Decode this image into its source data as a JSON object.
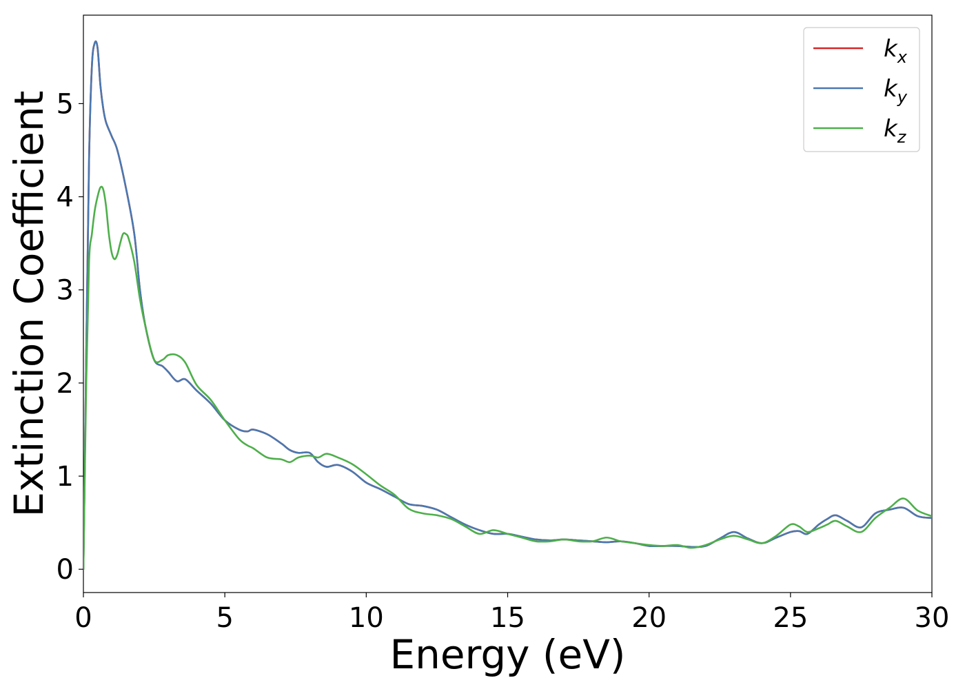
{
  "chart_data": {
    "type": "line",
    "title": "",
    "xlabel": "Energy (eV)",
    "ylabel": "Extinction Coefficient",
    "xlim": [
      0,
      30
    ],
    "ylim": [
      -0.25,
      5.95
    ],
    "xticks": [
      0,
      5,
      10,
      15,
      20,
      25,
      30
    ],
    "yticks": [
      0,
      1,
      2,
      3,
      4,
      5
    ],
    "xtick_labels": [
      "0",
      "5",
      "10",
      "15",
      "20",
      "25",
      "30"
    ],
    "ytick_labels": [
      "0",
      "1",
      "2",
      "3",
      "4",
      "5"
    ],
    "grid": false,
    "legend_position": "top-right",
    "series": [
      {
        "name": "k_x",
        "label_main": "k",
        "label_sub": "x",
        "color": "#d62728",
        "x": [
          0,
          0.1,
          0.2,
          0.3,
          0.4,
          0.5,
          0.6,
          0.7,
          0.8,
          1.0,
          1.2,
          1.5,
          1.8,
          2.0,
          2.2,
          2.5,
          2.8,
          3.0,
          3.3,
          3.6,
          4.0,
          4.5,
          5.0,
          5.5,
          5.8,
          6.0,
          6.5,
          7.0,
          7.3,
          7.6,
          8.0,
          8.3,
          8.6,
          9.0,
          9.5,
          10.0,
          10.5,
          11.0,
          11.5,
          12.0,
          12.5,
          13.0,
          13.5,
          14.0,
          14.5,
          15.0,
          15.5,
          16.0,
          16.5,
          17.0,
          17.5,
          18.0,
          18.5,
          19.0,
          19.5,
          20.0,
          20.5,
          21.0,
          21.5,
          22.0,
          22.5,
          23.0,
          23.5,
          24.0,
          24.5,
          25.0,
          25.3,
          25.6,
          26.0,
          26.3,
          26.6,
          27.0,
          27.5,
          28.0,
          28.5,
          29.0,
          29.5,
          30.0
        ],
        "y": [
          0.0,
          2.3,
          4.4,
          5.4,
          5.65,
          5.6,
          5.2,
          4.95,
          4.8,
          4.65,
          4.5,
          4.1,
          3.6,
          3.0,
          2.6,
          2.25,
          2.18,
          2.12,
          2.02,
          2.04,
          1.92,
          1.78,
          1.6,
          1.5,
          1.48,
          1.5,
          1.45,
          1.35,
          1.28,
          1.25,
          1.25,
          1.15,
          1.1,
          1.12,
          1.05,
          0.93,
          0.86,
          0.78,
          0.7,
          0.68,
          0.64,
          0.56,
          0.48,
          0.42,
          0.38,
          0.38,
          0.35,
          0.32,
          0.31,
          0.32,
          0.31,
          0.3,
          0.29,
          0.3,
          0.28,
          0.25,
          0.25,
          0.25,
          0.24,
          0.25,
          0.33,
          0.4,
          0.33,
          0.28,
          0.34,
          0.4,
          0.41,
          0.38,
          0.48,
          0.54,
          0.58,
          0.52,
          0.45,
          0.6,
          0.64,
          0.66,
          0.57,
          0.55
        ]
      },
      {
        "name": "k_y",
        "label_main": "k",
        "label_sub": "y",
        "color": "#4a78b0",
        "x": [
          0,
          0.1,
          0.2,
          0.3,
          0.4,
          0.5,
          0.6,
          0.7,
          0.8,
          1.0,
          1.2,
          1.5,
          1.8,
          2.0,
          2.2,
          2.5,
          2.8,
          3.0,
          3.3,
          3.6,
          4.0,
          4.5,
          5.0,
          5.5,
          5.8,
          6.0,
          6.5,
          7.0,
          7.3,
          7.6,
          8.0,
          8.3,
          8.6,
          9.0,
          9.5,
          10.0,
          10.5,
          11.0,
          11.5,
          12.0,
          12.5,
          13.0,
          13.5,
          14.0,
          14.5,
          15.0,
          15.5,
          16.0,
          16.5,
          17.0,
          17.5,
          18.0,
          18.5,
          19.0,
          19.5,
          20.0,
          20.5,
          21.0,
          21.5,
          22.0,
          22.5,
          23.0,
          23.5,
          24.0,
          24.5,
          25.0,
          25.3,
          25.6,
          26.0,
          26.3,
          26.6,
          27.0,
          27.5,
          28.0,
          28.5,
          29.0,
          29.5,
          30.0
        ],
        "y": [
          0.0,
          2.3,
          4.4,
          5.4,
          5.65,
          5.6,
          5.2,
          4.95,
          4.8,
          4.65,
          4.5,
          4.1,
          3.6,
          3.0,
          2.6,
          2.25,
          2.18,
          2.12,
          2.02,
          2.04,
          1.92,
          1.78,
          1.6,
          1.5,
          1.48,
          1.5,
          1.45,
          1.35,
          1.28,
          1.25,
          1.25,
          1.15,
          1.1,
          1.12,
          1.05,
          0.93,
          0.86,
          0.78,
          0.7,
          0.68,
          0.64,
          0.56,
          0.48,
          0.42,
          0.38,
          0.38,
          0.35,
          0.32,
          0.31,
          0.32,
          0.31,
          0.3,
          0.29,
          0.3,
          0.28,
          0.25,
          0.25,
          0.25,
          0.24,
          0.25,
          0.33,
          0.4,
          0.33,
          0.28,
          0.34,
          0.4,
          0.41,
          0.38,
          0.48,
          0.54,
          0.58,
          0.52,
          0.45,
          0.6,
          0.64,
          0.66,
          0.57,
          0.55
        ]
      },
      {
        "name": "k_z",
        "label_main": "k",
        "label_sub": "z",
        "color": "#4daf4a",
        "x": [
          0,
          0.1,
          0.2,
          0.3,
          0.4,
          0.5,
          0.6,
          0.7,
          0.8,
          0.9,
          1.0,
          1.1,
          1.2,
          1.3,
          1.4,
          1.5,
          1.6,
          1.8,
          2.0,
          2.2,
          2.5,
          2.8,
          3.0,
          3.3,
          3.6,
          4.0,
          4.5,
          5.0,
          5.5,
          5.8,
          6.0,
          6.5,
          7.0,
          7.3,
          7.6,
          8.0,
          8.3,
          8.6,
          9.0,
          9.5,
          10.0,
          10.5,
          11.0,
          11.5,
          12.0,
          12.5,
          13.0,
          13.5,
          14.0,
          14.5,
          15.0,
          15.5,
          16.0,
          16.5,
          17.0,
          17.5,
          18.0,
          18.5,
          19.0,
          19.5,
          20.0,
          20.5,
          21.0,
          21.5,
          22.0,
          22.5,
          23.0,
          23.5,
          24.0,
          24.5,
          25.0,
          25.3,
          25.6,
          26.0,
          26.3,
          26.6,
          27.0,
          27.5,
          28.0,
          28.5,
          29.0,
          29.5,
          30.0
        ],
        "y": [
          0.0,
          2.0,
          3.3,
          3.6,
          3.85,
          4.0,
          4.1,
          4.08,
          3.9,
          3.6,
          3.4,
          3.33,
          3.38,
          3.5,
          3.6,
          3.6,
          3.55,
          3.3,
          2.9,
          2.6,
          2.25,
          2.25,
          2.3,
          2.3,
          2.22,
          1.98,
          1.82,
          1.6,
          1.4,
          1.33,
          1.3,
          1.2,
          1.18,
          1.15,
          1.2,
          1.22,
          1.2,
          1.24,
          1.2,
          1.13,
          1.02,
          0.9,
          0.8,
          0.65,
          0.6,
          0.58,
          0.54,
          0.46,
          0.38,
          0.42,
          0.38,
          0.34,
          0.3,
          0.3,
          0.32,
          0.3,
          0.3,
          0.34,
          0.3,
          0.28,
          0.26,
          0.25,
          0.26,
          0.23,
          0.26,
          0.32,
          0.36,
          0.32,
          0.28,
          0.36,
          0.48,
          0.46,
          0.4,
          0.44,
          0.48,
          0.52,
          0.46,
          0.4,
          0.55,
          0.66,
          0.76,
          0.63,
          0.57
        ]
      }
    ]
  }
}
